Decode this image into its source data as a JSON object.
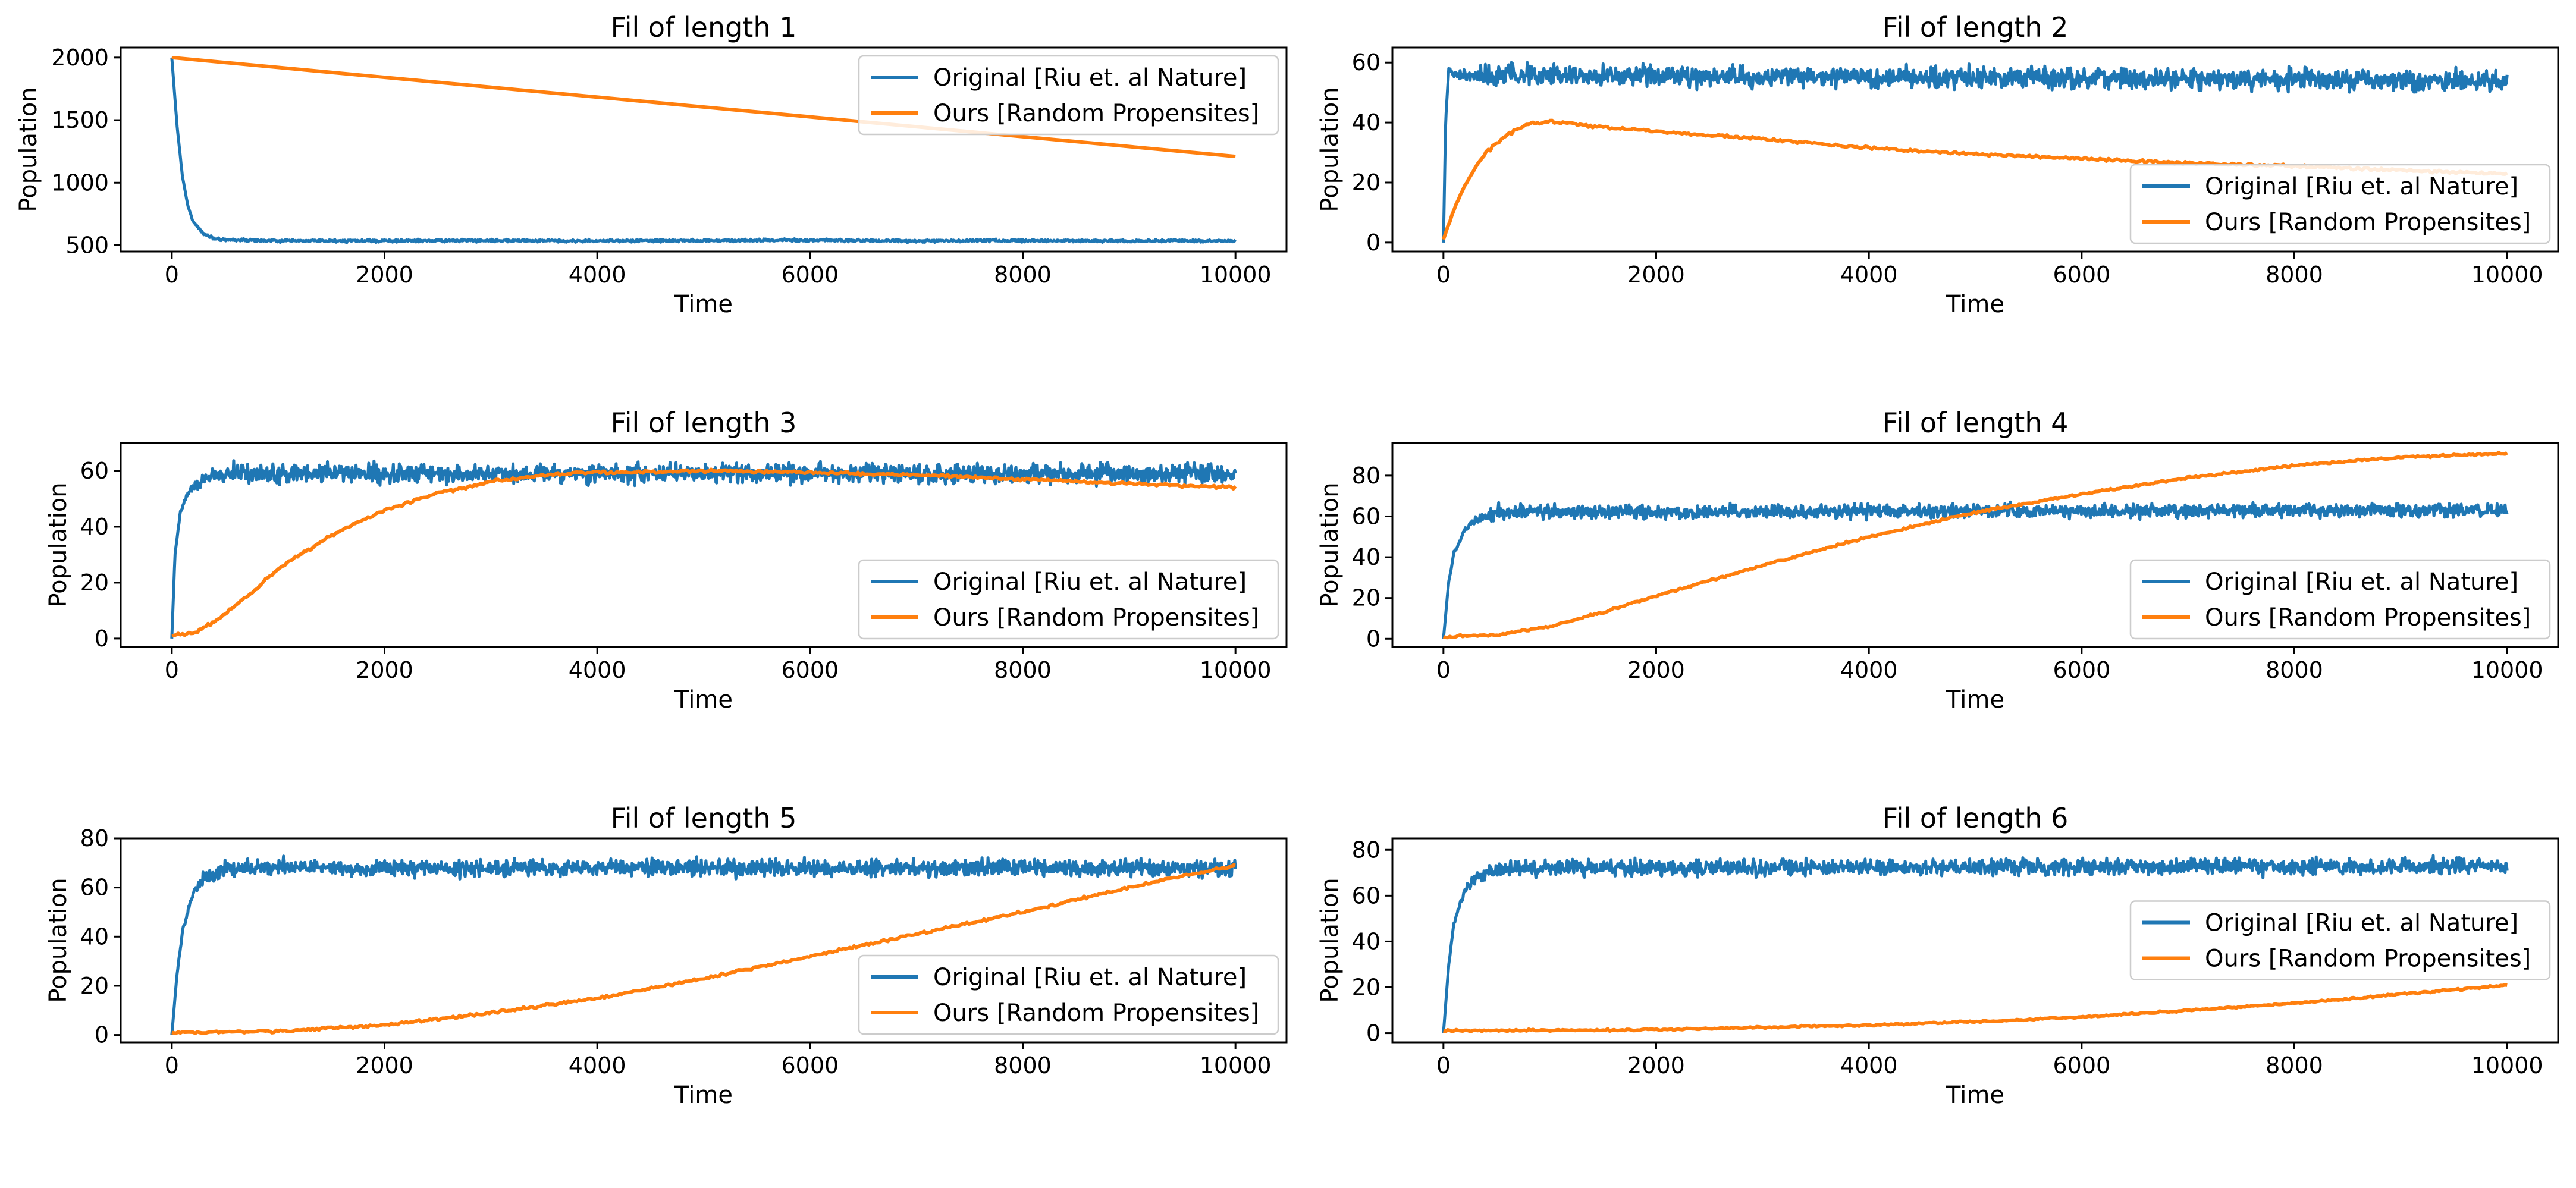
{
  "colors": {
    "original": "#1f77b4",
    "ours": "#ff7f0e"
  },
  "chart_data": [
    {
      "type": "line",
      "title": "Fil of length 1",
      "xlabel": "Time",
      "ylabel": "Population",
      "xlim": [
        -480,
        10480
      ],
      "ylim": [
        450,
        2080
      ],
      "xticks": [
        0,
        2000,
        4000,
        6000,
        8000,
        10000
      ],
      "xtick_labels": [
        "0",
        "2000",
        "4000",
        "6000",
        "8000",
        "10000"
      ],
      "yticks": [
        500,
        1000,
        1500,
        2000
      ],
      "ytick_labels": [
        "500",
        "1000",
        "1500",
        "2000"
      ],
      "legend": "upper right",
      "series": [
        {
          "name": "Original [Riu et. al Nature]",
          "color": "#1f77b4",
          "x": [
            0,
            50,
            100,
            150,
            200,
            300,
            400,
            500,
            700,
            1000,
            2000,
            3000,
            4000,
            5000,
            6000,
            7000,
            8000,
            9000,
            10000
          ],
          "y": [
            2000,
            1450,
            1050,
            820,
            690,
            590,
            555,
            545,
            540,
            535,
            535,
            538,
            535,
            537,
            540,
            535,
            538,
            535,
            535
          ],
          "noise": 8
        },
        {
          "name": "Ours [Random Propensites]",
          "color": "#ff7f0e",
          "x": [
            0,
            10000
          ],
          "y": [
            2000,
            1210
          ],
          "noise": 0
        }
      ]
    },
    {
      "type": "line",
      "title": "Fil of length 2",
      "xlabel": "Time",
      "ylabel": "Population",
      "xlim": [
        -480,
        10480
      ],
      "ylim": [
        -3,
        65
      ],
      "xticks": [
        0,
        2000,
        4000,
        6000,
        8000,
        10000
      ],
      "xtick_labels": [
        "0",
        "2000",
        "4000",
        "6000",
        "8000",
        "10000"
      ],
      "yticks": [
        0,
        20,
        40,
        60
      ],
      "ytick_labels": [
        "0",
        "20",
        "40",
        "60"
      ],
      "legend": "lower right",
      "series": [
        {
          "name": "Original [Riu et. al Nature]",
          "color": "#1f77b4",
          "x": [
            0,
            20,
            50,
            100,
            10000
          ],
          "y": [
            0,
            40,
            58,
            56,
            54
          ],
          "noise": 2.6
        },
        {
          "name": "Ours [Random Propensites]",
          "color": "#ff7f0e",
          "x": [
            0,
            100,
            200,
            300,
            400,
            600,
            800,
            1000,
            1500,
            2000,
            3000,
            4000,
            5000,
            6000,
            7000,
            8000,
            9000,
            10000
          ],
          "y": [
            1,
            11,
            19,
            25,
            30,
            36,
            39.5,
            40.5,
            38.5,
            37,
            34.5,
            31.5,
            29.5,
            28,
            26.5,
            25.5,
            24,
            23
          ],
          "noise": 0.35
        }
      ]
    },
    {
      "type": "line",
      "title": "Fil of length 3",
      "xlabel": "Time",
      "ylabel": "Population",
      "xlim": [
        -480,
        10480
      ],
      "ylim": [
        -3,
        70
      ],
      "xticks": [
        0,
        2000,
        4000,
        6000,
        8000,
        10000
      ],
      "xtick_labels": [
        "0",
        "2000",
        "4000",
        "6000",
        "8000",
        "10000"
      ],
      "yticks": [
        0,
        20,
        40,
        60
      ],
      "ytick_labels": [
        "0",
        "20",
        "40",
        "60"
      ],
      "legend": "lower right",
      "series": [
        {
          "name": "Original [Riu et. al Nature]",
          "color": "#1f77b4",
          "x": [
            0,
            30,
            80,
            150,
            300,
            500,
            10000
          ],
          "y": [
            0,
            30,
            45,
            52,
            57,
            59,
            59
          ],
          "noise": 2.6
        },
        {
          "name": "Ours [Random Propensites]",
          "color": "#ff7f0e",
          "x": [
            0,
            200,
            400,
            600,
            800,
            1000,
            1500,
            2000,
            2500,
            3000,
            3500,
            4000,
            5000,
            6000,
            7000,
            8000,
            9000,
            10000
          ],
          "y": [
            1,
            2,
            6,
            12,
            18,
            25,
            37,
            46,
            52,
            56,
            58.5,
            59.5,
            60,
            59.5,
            58.5,
            57,
            55.5,
            54
          ],
          "noise": 0.4
        }
      ]
    },
    {
      "type": "line",
      "title": "Fil of length 4",
      "xlabel": "Time",
      "ylabel": "Population",
      "xlim": [
        -480,
        10480
      ],
      "ylim": [
        -4,
        96
      ],
      "xticks": [
        0,
        2000,
        4000,
        6000,
        8000,
        10000
      ],
      "xtick_labels": [
        "0",
        "2000",
        "4000",
        "6000",
        "8000",
        "10000"
      ],
      "yticks": [
        0,
        20,
        40,
        60,
        80
      ],
      "ytick_labels": [
        "0",
        "20",
        "40",
        "60",
        "80"
      ],
      "legend": "lower right",
      "series": [
        {
          "name": "Original [Riu et. al Nature]",
          "color": "#1f77b4",
          "x": [
            0,
            50,
            100,
            200,
            300,
            500,
            10000
          ],
          "y": [
            0,
            28,
            42,
            53,
            58,
            62,
            63
          ],
          "noise": 2.6
        },
        {
          "name": "Ours [Random Propensites]",
          "color": "#ff7f0e",
          "x": [
            0,
            500,
            1000,
            1500,
            2000,
            3000,
            4000,
            5000,
            6000,
            7000,
            8000,
            9000,
            10000
          ],
          "y": [
            1,
            2,
            6,
            13,
            21,
            36,
            50,
            62,
            71,
            79,
            85,
            89,
            91
          ],
          "noise": 0.4
        }
      ]
    },
    {
      "type": "line",
      "title": "Fil of length 5",
      "xlabel": "Time",
      "ylabel": "Population",
      "xlim": [
        -480,
        10480
      ],
      "ylim": [
        -3,
        80
      ],
      "xticks": [
        0,
        2000,
        4000,
        6000,
        8000,
        10000
      ],
      "xtick_labels": [
        "0",
        "2000",
        "4000",
        "6000",
        "8000",
        "10000"
      ],
      "yticks": [
        0,
        20,
        40,
        60,
        80
      ],
      "ytick_labels": [
        "0",
        "20",
        "40",
        "60",
        "80"
      ],
      "legend": "lower right",
      "series": [
        {
          "name": "Original [Riu et. al Nature]",
          "color": "#1f77b4",
          "x": [
            0,
            50,
            100,
            200,
            300,
            500,
            10000
          ],
          "y": [
            0,
            25,
            42,
            58,
            64,
            68,
            68
          ],
          "noise": 2.6
        },
        {
          "name": "Ours [Random Propensites]",
          "color": "#ff7f0e",
          "x": [
            0,
            1000,
            2000,
            3000,
            4000,
            5000,
            6000,
            7000,
            8000,
            9000,
            10000
          ],
          "y": [
            1,
            1.5,
            4,
            9,
            15,
            23,
            32,
            41,
            50,
            60,
            69
          ],
          "noise": 0.4
        }
      ]
    },
    {
      "type": "line",
      "title": "Fil of length 6",
      "xlabel": "Time",
      "ylabel": "Population",
      "xlim": [
        -480,
        10480
      ],
      "ylim": [
        -4,
        85
      ],
      "xticks": [
        0,
        2000,
        4000,
        6000,
        8000,
        10000
      ],
      "xtick_labels": [
        "0",
        "2000",
        "4000",
        "6000",
        "8000",
        "10000"
      ],
      "yticks": [
        0,
        20,
        40,
        60,
        80
      ],
      "ytick_labels": [
        "0",
        "20",
        "40",
        "60",
        "80"
      ],
      "legend": "center right",
      "series": [
        {
          "name": "Original [Riu et. al Nature]",
          "color": "#1f77b4",
          "x": [
            0,
            50,
            100,
            200,
            300,
            500,
            10000
          ],
          "y": [
            0,
            30,
            48,
            62,
            68,
            72,
            73
          ],
          "noise": 2.6
        },
        {
          "name": "Ours [Random Propensites]",
          "color": "#ff7f0e",
          "x": [
            0,
            2000,
            3000,
            4000,
            5000,
            6000,
            7000,
            8000,
            9000,
            10000
          ],
          "y": [
            1,
            1.5,
            2.5,
            3.5,
            5,
            7,
            10,
            13,
            17,
            21
          ],
          "noise": 0.3
        }
      ]
    }
  ]
}
